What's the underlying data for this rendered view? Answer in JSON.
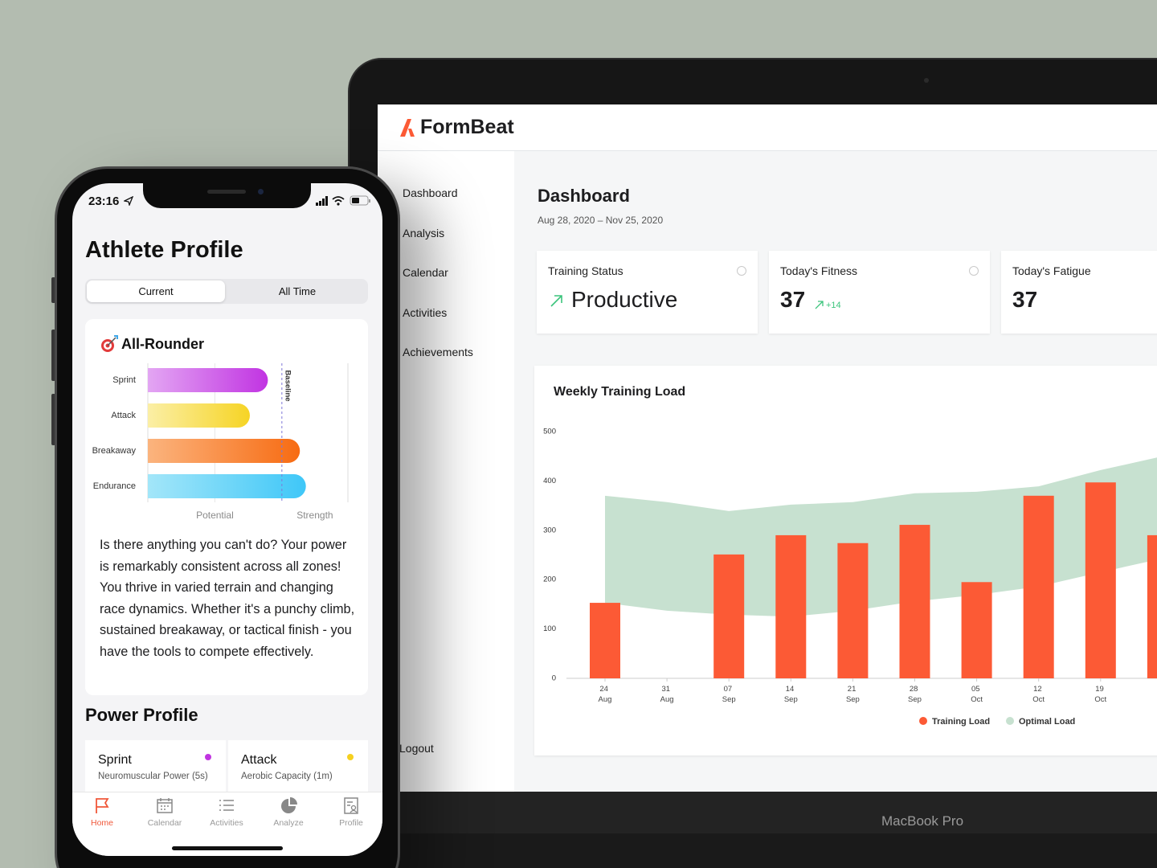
{
  "laptop": {
    "brand": "FormBeat",
    "nav": [
      "Dashboard",
      "Analysis",
      "Calendar",
      "Activities",
      "Achievements"
    ],
    "logout": "Logout",
    "page_title": "Dashboard",
    "date_range": "Aug 28, 2020 – Nov 25, 2020",
    "cards": [
      {
        "label": "Training Status",
        "value": "Productive"
      },
      {
        "label": "Today's Fitness",
        "value": "37",
        "change": "+14"
      },
      {
        "label": "Today's Fatigue",
        "value": "37"
      }
    ],
    "device_label": "MacBook Pro"
  },
  "phone": {
    "time": "23:16",
    "title": "Athlete Profile",
    "segments": [
      "Current",
      "All Time"
    ],
    "profile_title": "All-Rounder",
    "description": "Is there anything you can't do? Your power is remarkably consistent across all zones! You thrive in varied terrain and changing race dynamics. Whether it's a punchy climb, sustained breakaway, or tactical finish - you have the tools to compete effectively.",
    "section_title": "Power Profile",
    "power_cards": [
      {
        "title": "Sprint",
        "subtitle": "Neuromuscular Power (5s)",
        "color": "#c035e0"
      },
      {
        "title": "Attack",
        "subtitle": "Aerobic Capacity (1m)",
        "color": "#f5d020"
      }
    ],
    "tabs": [
      "Home",
      "Calendar",
      "Activities",
      "Analyze",
      "Profile"
    ]
  },
  "chart_data": [
    {
      "type": "bar",
      "title": "Weekly Training Load",
      "categories": [
        "24 Aug",
        "31 Aug",
        "07 Sep",
        "14 Sep",
        "21 Sep",
        "28 Sep",
        "05 Oct",
        "12 Oct",
        "19 Oct",
        null
      ],
      "series": [
        {
          "name": "Training Load",
          "color": "#fc5a35",
          "values": [
            153,
            null,
            251,
            290,
            274,
            311,
            195,
            370,
            397,
            290
          ]
        },
        {
          "name": "Optimal Load",
          "type": "band",
          "color": "#c7e1d0",
          "lower": [
            153,
            137,
            129,
            125,
            137,
            156,
            169,
            186,
            215,
            243
          ],
          "upper": [
            370,
            357,
            339,
            352,
            357,
            375,
            378,
            389,
            422,
            450
          ]
        }
      ],
      "ylim": [
        0,
        500
      ],
      "yticks": [
        0,
        100,
        200,
        300,
        400,
        500
      ],
      "grid": false
    },
    {
      "type": "hbar",
      "categories": [
        "Sprint",
        "Attack",
        "Breakaway",
        "Endurance"
      ],
      "values": [
        60,
        51,
        76,
        79
      ],
      "colors": [
        [
          "#e3a6f3",
          "#c134e2"
        ],
        [
          "#fbefa6",
          "#f6d424"
        ],
        [
          "#fbb47e",
          "#f76b12"
        ],
        [
          "#a3e6f9",
          "#3fc7f8"
        ]
      ],
      "xlim": [
        0,
        100
      ],
      "baseline": {
        "value": 67,
        "label": "Baseline"
      },
      "region_labels": [
        "Potential",
        "Strength"
      ]
    }
  ]
}
